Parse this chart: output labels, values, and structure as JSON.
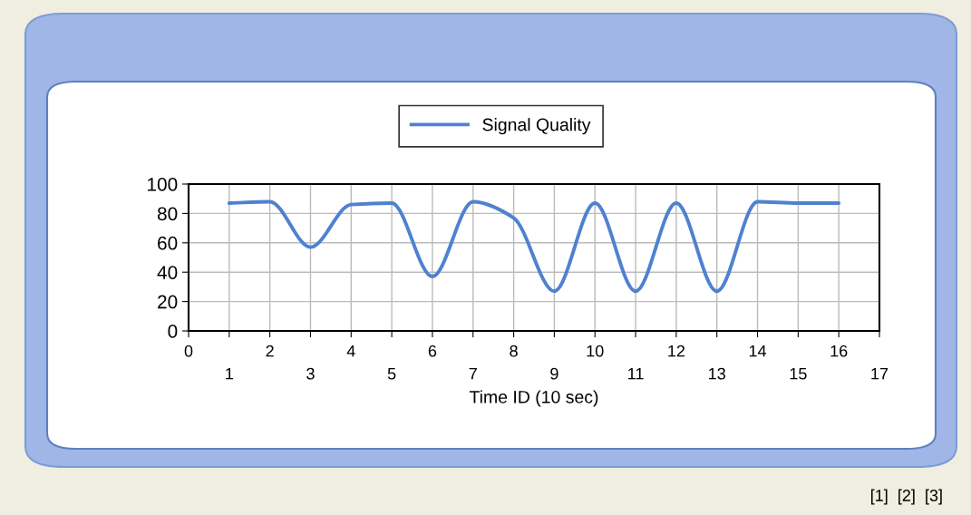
{
  "chart_data": {
    "type": "line",
    "xlabel": "Time ID (10 sec)",
    "x": [
      1,
      2,
      3,
      4,
      5,
      6,
      7,
      8,
      9,
      10,
      11,
      12,
      13,
      14,
      15,
      16
    ],
    "series": [
      {
        "name": "Signal Quality",
        "color": "#4f81d0",
        "values": [
          87,
          88,
          57,
          86,
          87,
          37,
          88,
          77,
          27,
          87,
          27,
          87,
          27,
          88,
          87,
          87
        ]
      }
    ],
    "xlim": [
      0,
      17
    ],
    "xticks": [
      0,
      2,
      4,
      6,
      8,
      10,
      12,
      14,
      16
    ],
    "x2lim": [
      0,
      17
    ],
    "x2ticks": [
      1,
      3,
      5,
      7,
      9,
      11,
      13,
      15,
      17
    ],
    "ylim": [
      0,
      100
    ],
    "yticks": [
      0,
      20,
      40,
      60,
      80,
      100
    ],
    "grid": true,
    "legend": "top",
    "marker": "none",
    "line_style": "solid",
    "annotations": [
      "[1]  [2]  [3]"
    ]
  }
}
